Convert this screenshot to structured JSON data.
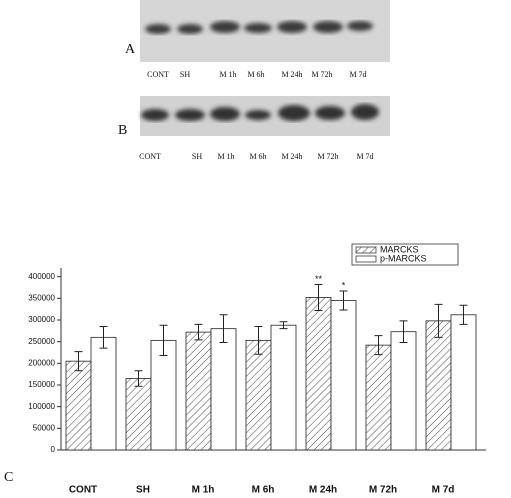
{
  "blots": [
    {
      "panel": "A",
      "lanes": [
        "CONT",
        "SH",
        "M 1h",
        "M 6h",
        "M 24h",
        "M 72h",
        "M 7d"
      ]
    },
    {
      "panel": "B",
      "lanes": [
        "CONT",
        "SH",
        "M 1h",
        "M 6h",
        "M 24h",
        "M 72h",
        "M 7d"
      ]
    }
  ],
  "chart_data": {
    "type": "bar",
    "panel": "C",
    "categories": [
      "CONT",
      "SH",
      "M 1h",
      "M 6h",
      "M 24h",
      "M 72h",
      "M 7d"
    ],
    "series": [
      {
        "name": "MARCKS",
        "color": "#222222",
        "hatch": "diagonal",
        "values": [
          205000,
          165000,
          272000,
          253000,
          352000,
          242000,
          298000
        ],
        "errors": [
          22000,
          18000,
          18000,
          32000,
          30000,
          22000,
          38000
        ],
        "significance": [
          null,
          null,
          null,
          null,
          "**",
          null,
          null
        ]
      },
      {
        "name": "p-MARCKS",
        "color": "#222222",
        "values": [
          260000,
          253000,
          280000,
          288000,
          345000,
          273000,
          312000
        ],
        "errors": [
          25000,
          35000,
          32000,
          8000,
          22000,
          25000,
          22000
        ],
        "significance": [
          null,
          null,
          null,
          null,
          "*",
          null,
          null
        ]
      }
    ],
    "ylim": [
      0,
      420000
    ],
    "yticks": [
      0,
      50000,
      100000,
      150000,
      200000,
      250000,
      300000,
      350000,
      400000
    ],
    "grid": false
  }
}
